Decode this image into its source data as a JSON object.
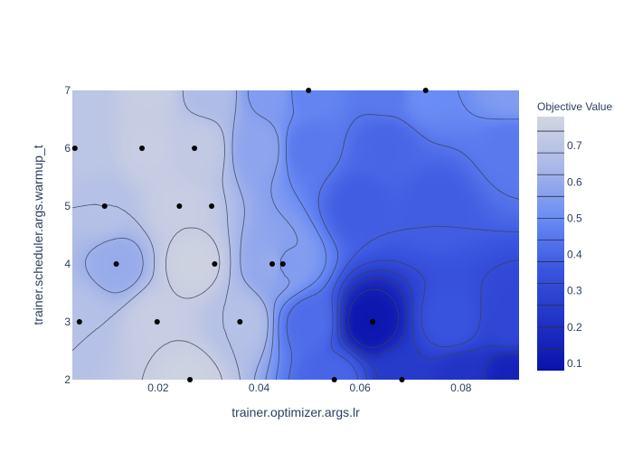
{
  "chart_data": {
    "type": "contour",
    "title": "",
    "xlabel": "trainer.optimizer.args.lr",
    "ylabel": "trainer.scheduler.args.warmup_t",
    "xlim": [
      0.003,
      0.0915
    ],
    "ylim": [
      2,
      7
    ],
    "xticks": [
      0.02,
      0.04,
      0.06,
      0.08
    ],
    "xtick_labels": [
      "0.02",
      "0.04",
      "0.06",
      "0.08"
    ],
    "yticks": [
      2,
      3,
      4,
      5,
      6,
      7
    ],
    "ytick_labels": [
      "2",
      "3",
      "4",
      "5",
      "6",
      "7"
    ],
    "colorbar": {
      "title": "Objective Value",
      "range": [
        0.08,
        0.78
      ],
      "ticks": [
        0.1,
        0.2,
        0.3,
        0.4,
        0.5,
        0.6,
        0.7
      ],
      "tick_labels": [
        "0.1",
        "0.2",
        "0.3",
        "0.4",
        "0.5",
        "0.6",
        "0.7"
      ],
      "colorscale": [
        [
          0.0,
          "#0a12ab"
        ],
        [
          0.4,
          "#3a56e0"
        ],
        [
          0.6,
          "#6a8cf4"
        ],
        [
          0.8,
          "#a9b8e8"
        ],
        [
          1.0,
          "#d3d6e0"
        ]
      ]
    },
    "contour_levels": [
      0.14,
      0.2,
      0.26,
      0.32,
      0.38,
      0.44,
      0.5,
      0.56,
      0.62,
      0.68,
      0.74
    ],
    "surface_nodes": [
      {
        "x": 0.005,
        "y": 7,
        "v": 0.7
      },
      {
        "x": 0.018,
        "y": 7,
        "v": 0.74
      },
      {
        "x": 0.03,
        "y": 7,
        "v": 0.66
      },
      {
        "x": 0.042,
        "y": 7,
        "v": 0.55
      },
      {
        "x": 0.05,
        "y": 7,
        "v": 0.48
      },
      {
        "x": 0.065,
        "y": 7,
        "v": 0.45
      },
      {
        "x": 0.073,
        "y": 7,
        "v": 0.5
      },
      {
        "x": 0.09,
        "y": 7,
        "v": 0.55
      },
      {
        "x": 0.005,
        "y": 6,
        "v": 0.7
      },
      {
        "x": 0.018,
        "y": 6,
        "v": 0.74
      },
      {
        "x": 0.028,
        "y": 6,
        "v": 0.72
      },
      {
        "x": 0.04,
        "y": 6,
        "v": 0.58
      },
      {
        "x": 0.05,
        "y": 6,
        "v": 0.45
      },
      {
        "x": 0.065,
        "y": 6,
        "v": 0.4
      },
      {
        "x": 0.09,
        "y": 6,
        "v": 0.45
      },
      {
        "x": 0.004,
        "y": 3,
        "v": 0.68
      },
      {
        "x": 0.012,
        "y": 4,
        "v": 0.6
      },
      {
        "x": 0.02,
        "y": 3,
        "v": 0.74
      },
      {
        "x": 0.026,
        "y": 2,
        "v": 0.76
      },
      {
        "x": 0.027,
        "y": 4,
        "v": 0.76
      },
      {
        "x": 0.036,
        "y": 3,
        "v": 0.68
      },
      {
        "x": 0.043,
        "y": 4,
        "v": 0.6
      },
      {
        "x": 0.045,
        "y": 4,
        "v": 0.55
      },
      {
        "x": 0.05,
        "y": 3,
        "v": 0.42
      },
      {
        "x": 0.055,
        "y": 2,
        "v": 0.4
      },
      {
        "x": 0.062,
        "y": 3,
        "v": 0.1
      },
      {
        "x": 0.068,
        "y": 2,
        "v": 0.25
      },
      {
        "x": 0.078,
        "y": 3,
        "v": 0.35
      },
      {
        "x": 0.09,
        "y": 3,
        "v": 0.3
      },
      {
        "x": 0.09,
        "y": 2,
        "v": 0.15
      },
      {
        "x": 0.08,
        "y": 2,
        "v": 0.22
      },
      {
        "x": 0.075,
        "y": 5,
        "v": 0.38
      },
      {
        "x": 0.06,
        "y": 5,
        "v": 0.38
      },
      {
        "x": 0.009,
        "y": 5,
        "v": 0.68
      },
      {
        "x": 0.024,
        "y": 5,
        "v": 0.74
      }
    ],
    "points": [
      {
        "x": 0.0035,
        "y": 6
      },
      {
        "x": 0.0168,
        "y": 6
      },
      {
        "x": 0.0272,
        "y": 6
      },
      {
        "x": 0.0094,
        "y": 5
      },
      {
        "x": 0.0242,
        "y": 5
      },
      {
        "x": 0.0306,
        "y": 5
      },
      {
        "x": 0.0117,
        "y": 4
      },
      {
        "x": 0.0312,
        "y": 4
      },
      {
        "x": 0.0426,
        "y": 4
      },
      {
        "x": 0.0447,
        "y": 4
      },
      {
        "x": 0.0044,
        "y": 3
      },
      {
        "x": 0.0198,
        "y": 3
      },
      {
        "x": 0.0362,
        "y": 3
      },
      {
        "x": 0.0625,
        "y": 3
      },
      {
        "x": 0.0263,
        "y": 2
      },
      {
        "x": 0.0549,
        "y": 2
      },
      {
        "x": 0.0683,
        "y": 2
      },
      {
        "x": 0.0498,
        "y": 7
      },
      {
        "x": 0.073,
        "y": 7
      }
    ]
  }
}
